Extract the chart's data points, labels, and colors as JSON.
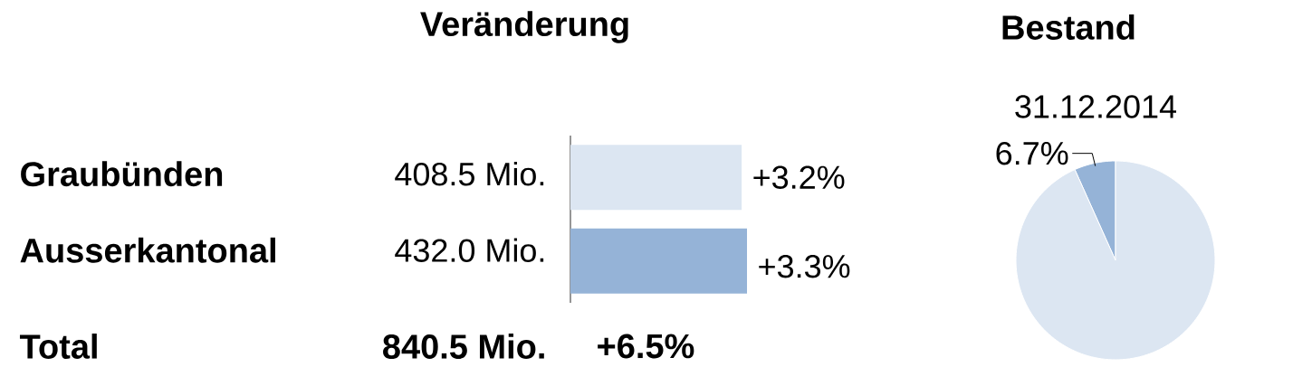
{
  "chart_data": [
    {
      "type": "bar",
      "orientation": "horizontal",
      "title": "Veränderung",
      "categories": [
        "Graubünden",
        "Ausserkantonal"
      ],
      "values": [
        3.2,
        3.3
      ],
      "colors": [
        "#dce6f2",
        "#95b3d7"
      ],
      "value_labels": [
        "+3.2%",
        "+3.3%"
      ],
      "annotations": [
        "408.5 Mio.",
        "432.0 Mio.",
        "Total",
        "840.5 Mio.",
        "+6.5%"
      ]
    },
    {
      "type": "pie",
      "title": "Bestand",
      "subtitle": "31.12.2014",
      "categories": [
        null,
        null
      ],
      "values": [
        6.7,
        93.3
      ],
      "colors": [
        "#95b3d7",
        "#dce6f2"
      ],
      "value_labels": [
        "6.7%",
        null
      ]
    }
  ]
}
